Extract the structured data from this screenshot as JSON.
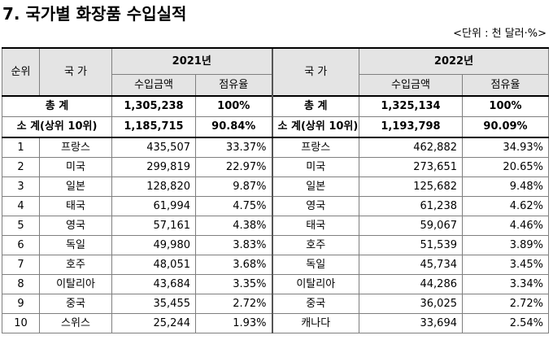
{
  "title": "7. 국가별 화장품 수입실적",
  "unit": "<단위 : 천 달러·%>",
  "headers": {
    "rank": "순위",
    "country": "국 가",
    "year1": "2021년",
    "year2": "2022년",
    "amount": "수입금액",
    "share": "점유율"
  },
  "total": {
    "label": "총 계",
    "amount_2021": "1,305,238",
    "share_2021": "100%",
    "amount_2022": "1,325,134",
    "share_2022": "100%"
  },
  "subtotal": {
    "label": "소 계(상위 10위)",
    "amount_2021": "1,185,715",
    "share_2021": "90.84%",
    "amount_2022": "1,193,798",
    "share_2022": "90.09%"
  },
  "rows": [
    {
      "rank": "1",
      "c21": "프랑스",
      "a21": "435,507",
      "s21": "33.37%",
      "c22": "프랑스",
      "a22": "462,882",
      "s22": "34.93%"
    },
    {
      "rank": "2",
      "c21": "미국",
      "a21": "299,819",
      "s21": "22.97%",
      "c22": "미국",
      "a22": "273,651",
      "s22": "20.65%"
    },
    {
      "rank": "3",
      "c21": "일본",
      "a21": "128,820",
      "s21": "9.87%",
      "c22": "일본",
      "a22": "125,682",
      "s22": "9.48%"
    },
    {
      "rank": "4",
      "c21": "태국",
      "a21": "61,994",
      "s21": "4.75%",
      "c22": "영국",
      "a22": "61,238",
      "s22": "4.62%"
    },
    {
      "rank": "5",
      "c21": "영국",
      "a21": "57,161",
      "s21": "4.38%",
      "c22": "태국",
      "a22": "59,067",
      "s22": "4.46%"
    },
    {
      "rank": "6",
      "c21": "독일",
      "a21": "49,980",
      "s21": "3.83%",
      "c22": "호주",
      "a22": "51,539",
      "s22": "3.89%"
    },
    {
      "rank": "7",
      "c21": "호주",
      "a21": "48,051",
      "s21": "3.68%",
      "c22": "독일",
      "a22": "45,734",
      "s22": "3.45%"
    },
    {
      "rank": "8",
      "c21": "이탈리아",
      "a21": "43,684",
      "s21": "3.35%",
      "c22": "이탈리아",
      "a22": "44,286",
      "s22": "3.34%"
    },
    {
      "rank": "9",
      "c21": "중국",
      "a21": "35,455",
      "s21": "2.72%",
      "c22": "중국",
      "a22": "36,025",
      "s22": "2.72%"
    },
    {
      "rank": "10",
      "c21": "스위스",
      "a21": "25,244",
      "s21": "1.93%",
      "c22": "캐나다",
      "a22": "33,694",
      "s22": "2.54%"
    }
  ]
}
